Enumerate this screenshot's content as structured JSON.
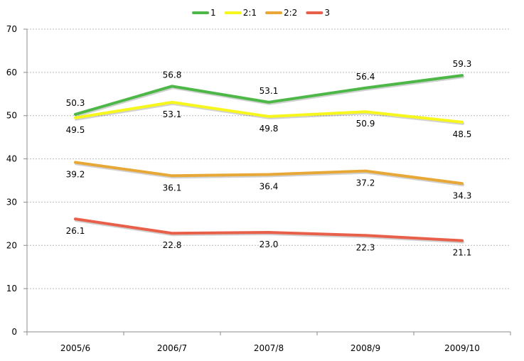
{
  "chart_data": {
    "type": "line",
    "title": "",
    "xlabel": "",
    "ylabel": "",
    "categories": [
      "2005/6",
      "2006/7",
      "2007/8",
      "2008/9",
      "2009/10"
    ],
    "ylim": [
      0,
      70
    ],
    "yticks": [
      "0",
      "10",
      "20",
      "30",
      "40",
      "50",
      "60",
      "70"
    ],
    "grid": "horizontal-dashed",
    "legend_position": "top",
    "series": [
      {
        "name": "1",
        "color": "#4db848",
        "values": [
          50.3,
          56.8,
          53.1,
          56.4,
          59.3
        ],
        "labels": [
          "50.3",
          "56.8",
          "53.1",
          "56.4",
          "59.3"
        ],
        "label_side": "above"
      },
      {
        "name": "2:1",
        "color": "#f7f71e",
        "values": [
          49.5,
          53.1,
          49.8,
          50.9,
          48.5
        ],
        "labels": [
          "49.5",
          "53.1",
          "49.8",
          "50.9",
          "48.5"
        ],
        "label_side": "below"
      },
      {
        "name": "2:2",
        "color": "#e8a838",
        "values": [
          39.2,
          36.1,
          36.4,
          37.2,
          34.3
        ],
        "labels": [
          "39.2",
          "36.1",
          "36.4",
          "37.2",
          "34.3"
        ],
        "label_side": "below"
      },
      {
        "name": "3",
        "color": "#e8604a",
        "values": [
          26.1,
          22.8,
          23.0,
          22.3,
          21.1
        ],
        "labels": [
          "26.1",
          "22.8",
          "23.0",
          "22.3",
          "21.1"
        ],
        "label_side": "below"
      }
    ]
  }
}
